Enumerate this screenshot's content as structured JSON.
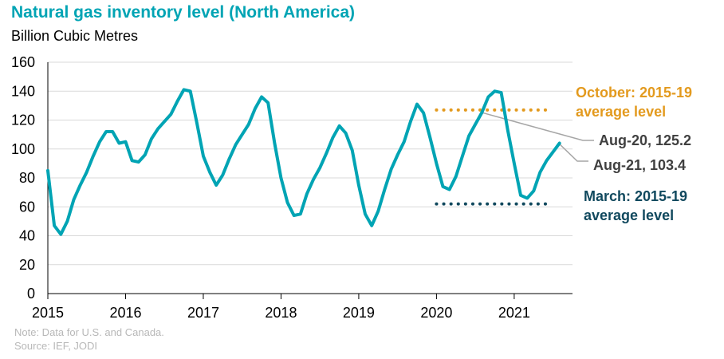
{
  "colors": {
    "series": "#00a4b4",
    "october_avg": "#e39a1e",
    "march_avg": "#11495e",
    "callout": "#404040",
    "grid": "#d9d9d9",
    "axis": "#000000"
  },
  "header": {
    "title": "Natural gas inventory level (North America)",
    "subtitle": "Billion Cubic Metres"
  },
  "footer": {
    "note": "Note: Data for U.S. and Canada.",
    "source": "Source: IEF, JODI"
  },
  "chart_data": {
    "type": "line",
    "title": "Natural gas inventory level (North America)",
    "ylabel": "Billion Cubic Metres",
    "xlabel": "",
    "ylim": [
      0,
      160
    ],
    "yticks": [
      0,
      20,
      40,
      60,
      80,
      100,
      120,
      140,
      160
    ],
    "xlim": [
      2015,
      2021.75
    ],
    "xticks": [
      "2015",
      "2016",
      "2017",
      "2018",
      "2019",
      "2020",
      "2021"
    ],
    "grid": "horizontal",
    "series": [
      {
        "name": "Natural gas inventory level",
        "x": [
          2015.0,
          2015.083,
          2015.167,
          2015.25,
          2015.333,
          2015.417,
          2015.5,
          2015.583,
          2015.667,
          2015.75,
          2015.833,
          2015.917,
          2016.0,
          2016.083,
          2016.167,
          2016.25,
          2016.333,
          2016.417,
          2016.5,
          2016.583,
          2016.667,
          2016.75,
          2016.833,
          2016.917,
          2017.0,
          2017.083,
          2017.167,
          2017.25,
          2017.333,
          2017.417,
          2017.5,
          2017.583,
          2017.667,
          2017.75,
          2017.833,
          2017.917,
          2018.0,
          2018.083,
          2018.167,
          2018.25,
          2018.333,
          2018.417,
          2018.5,
          2018.583,
          2018.667,
          2018.75,
          2018.833,
          2018.917,
          2019.0,
          2019.083,
          2019.167,
          2019.25,
          2019.333,
          2019.417,
          2019.5,
          2019.583,
          2019.667,
          2019.75,
          2019.833,
          2019.917,
          2020.0,
          2020.083,
          2020.167,
          2020.25,
          2020.333,
          2020.417,
          2020.5,
          2020.583,
          2020.667,
          2020.75,
          2020.833,
          2020.917,
          2021.0,
          2021.083,
          2021.167,
          2021.25,
          2021.333,
          2021.417,
          2021.5,
          2021.583
        ],
        "values": [
          85,
          47,
          41,
          50,
          65,
          75,
          84,
          95,
          105,
          112,
          112,
          104,
          105,
          92,
          91,
          96,
          107,
          114,
          119,
          124,
          133,
          141,
          140,
          118,
          95,
          84,
          75,
          82,
          93,
          103,
          110,
          117,
          128,
          136,
          132,
          104,
          80,
          63,
          54,
          55,
          69,
          79,
          87,
          97,
          108,
          116,
          111,
          99,
          75,
          55,
          47,
          57,
          72,
          86,
          96,
          105,
          119,
          131,
          125,
          108,
          90,
          74,
          72,
          81,
          95,
          109,
          117,
          125,
          136,
          140,
          139,
          113,
          90,
          68,
          66,
          71,
          84,
          92,
          98,
          104
        ]
      }
    ],
    "reference_lines": [
      {
        "name": "October: 2015-19 average level",
        "value": 127,
        "x_start": 2020.0,
        "x_end": 2021.42,
        "label_lines": [
          "October: 2015-19",
          "average level"
        ],
        "color": "#e39a1e"
      },
      {
        "name": "March: 2015-19 average level",
        "value": 62,
        "x_start": 2020.0,
        "x_end": 2021.42,
        "label_lines": [
          "March: 2015-19",
          "average level"
        ],
        "color": "#11495e"
      }
    ],
    "annotations": [
      {
        "text": "Aug-20, 125.2",
        "x": 2020.583,
        "y": 125.2
      },
      {
        "text": "Aug-21, 103.4",
        "x": 2021.583,
        "y": 103.4
      }
    ]
  }
}
